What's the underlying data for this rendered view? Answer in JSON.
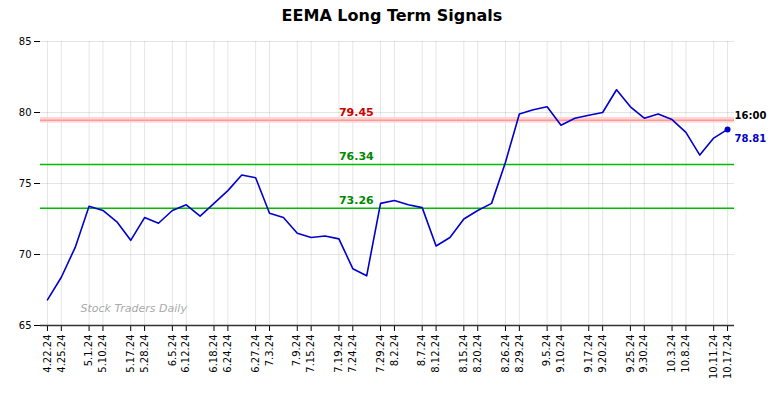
{
  "chart_data": {
    "type": "line",
    "title": "EEMA Long Term Signals",
    "categories": [
      "4.22.24",
      "4.25.24",
      null,
      "5.1.24",
      "5.10.24",
      null,
      "5.17.24",
      "5.28.24",
      null,
      "6.5.24",
      "6.12.24",
      null,
      "6.18.24",
      "6.24.24",
      null,
      "6.27.24",
      "7.3.24",
      null,
      "7.9.24",
      "7.15.24",
      null,
      "7.19.24",
      "7.24.24",
      null,
      "7.29.24",
      "8.2.24",
      null,
      "8.7.24",
      "8.12.24",
      null,
      "8.15.24",
      "8.20.24",
      null,
      "8.26.24",
      "8.29.24",
      null,
      "9.5.24",
      "9.10.24",
      null,
      "9.17.24",
      "9.20.24",
      null,
      "9.25.24",
      "9.30.24",
      null,
      "10.3.24",
      "10.8.24",
      null,
      "10.11.24",
      "10.17.24"
    ],
    "values": [
      66.8,
      68.4,
      70.5,
      73.4,
      73.1,
      72.3,
      71.0,
      72.6,
      72.2,
      73.1,
      73.5,
      72.7,
      73.6,
      74.5,
      75.6,
      75.4,
      72.9,
      72.6,
      71.5,
      71.2,
      71.3,
      71.1,
      69.0,
      68.5,
      73.6,
      73.8,
      73.5,
      73.3,
      70.6,
      71.2,
      72.5,
      73.1,
      73.6,
      76.5,
      79.9,
      80.2,
      80.4,
      79.1,
      79.6,
      79.8,
      80.0,
      81.6,
      80.4,
      79.6,
      79.9,
      79.5,
      78.6,
      77.0,
      78.2,
      78.81
    ],
    "color": "#0000cc",
    "ylim": [
      65,
      85
    ],
    "yticks": [
      65,
      70,
      75,
      80,
      85
    ],
    "grid": true,
    "hlines": [
      {
        "value": 79.45,
        "label": "79.45",
        "color": "#ff9999",
        "label_color": "#cc0000",
        "band": [
          79.25,
          79.65
        ],
        "band_color": "#ffcccc"
      },
      {
        "value": 76.34,
        "label": "76.34",
        "color": "#00bb00",
        "label_color": "#008800"
      },
      {
        "value": 73.26,
        "label": "73.26",
        "color": "#00bb00",
        "label_color": "#008800"
      }
    ],
    "last_point_labels": [
      "16:00",
      "78.81"
    ],
    "watermark": "Stock Traders Daily"
  }
}
